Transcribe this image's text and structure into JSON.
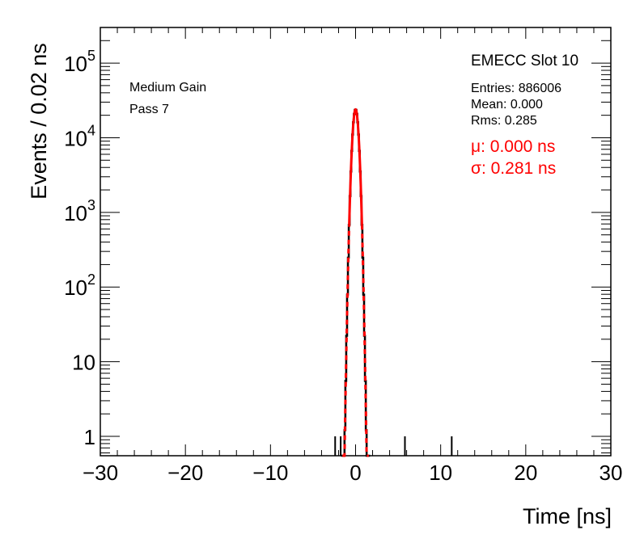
{
  "chart_data": {
    "type": "histogram",
    "xlabel": "Time [ns]",
    "ylabel": "Events / 0.02 ns",
    "xlim": [
      -30,
      30
    ],
    "ylim": [
      0.55,
      300000
    ],
    "y_scale": "log",
    "x_ticks": [
      -30,
      -20,
      -10,
      0,
      10,
      20,
      30
    ],
    "x_tick_labels": [
      "−30",
      "−20",
      "−10",
      "0",
      "10",
      "20",
      "30"
    ],
    "y_ticks": [
      {
        "value": 1,
        "base": "1",
        "exp": ""
      },
      {
        "value": 10,
        "base": "10",
        "exp": ""
      },
      {
        "value": 100,
        "base": "10",
        "exp": "2"
      },
      {
        "value": 1000,
        "base": "10",
        "exp": "3"
      },
      {
        "value": 10000,
        "base": "10",
        "exp": "4"
      },
      {
        "value": 100000,
        "base": "10",
        "exp": "5"
      }
    ],
    "left_labels": [
      "Medium Gain",
      "Pass 7"
    ],
    "title": "EMECC Slot 10",
    "stats": [
      "Entries: 886006",
      "Mean: 0.000",
      "Rms: 0.285"
    ],
    "fit_labels": [
      "μ: 0.000 ns",
      "σ: 0.281 ns"
    ],
    "histogram": {
      "peak": 24000,
      "mean": 0.0,
      "sigma": 0.281,
      "outliers": [
        {
          "x": -2.4,
          "y": 1
        },
        {
          "x": -1.75,
          "y": 1
        },
        {
          "x": 5.8,
          "y": 1
        },
        {
          "x": 11.3,
          "y": 1
        }
      ]
    },
    "fit": {
      "mean": 0.0,
      "sigma": 0.281,
      "amplitude": 24000,
      "color": "#ff0000"
    },
    "colors": {
      "histogram": "#000000",
      "fit": "#ff0000",
      "frame": "#000000"
    }
  }
}
